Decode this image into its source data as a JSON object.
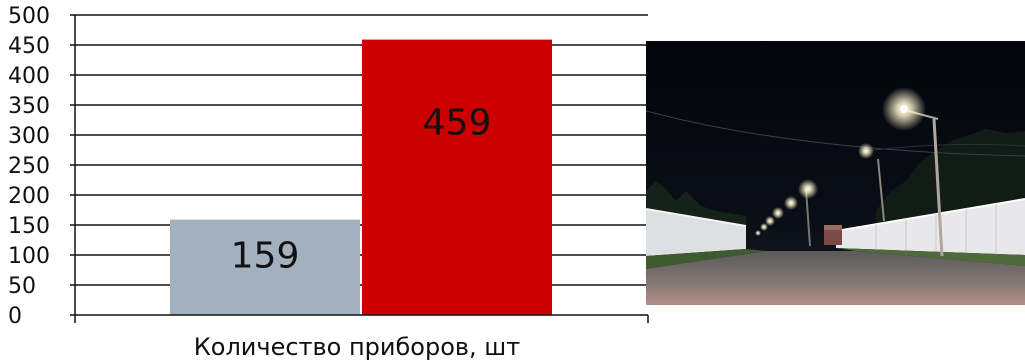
{
  "chart_data": {
    "type": "bar",
    "categories": [
      "",
      ""
    ],
    "values": [
      159,
      459
    ],
    "data_labels": [
      "159",
      "459"
    ],
    "colors": [
      "#a3b1bf",
      "#cc0000"
    ],
    "title": "",
    "xlabel": "Количество приборов, шт",
    "ylabel": "",
    "ylim": [
      0,
      500
    ],
    "ytick_step": 50,
    "grid": true,
    "legend": "none"
  },
  "photo": {
    "subject": "night-street-lighting-photo",
    "colors": {
      "sky": "#05070d",
      "road": "#6e6a68",
      "fence": "#e8e8ea",
      "lamp": "#fff6d0"
    }
  }
}
